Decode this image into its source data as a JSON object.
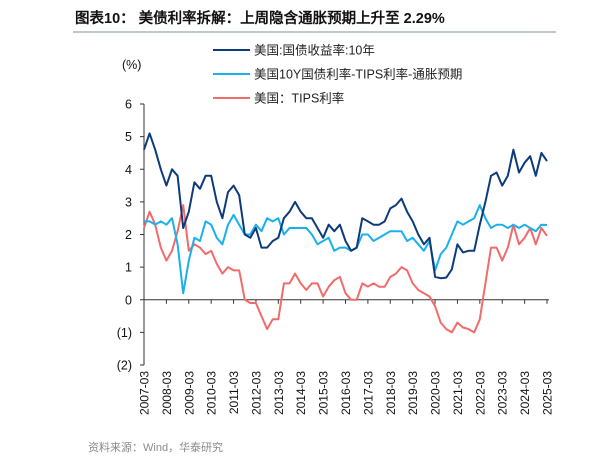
{
  "title": "图表10：  美债利率拆解：上周隐含通胀预期上升至 2.29%",
  "source": "资料来源：Wind，华泰研究",
  "chart_data": {
    "type": "line",
    "ylabel": "(%)",
    "ylim": [
      -2,
      6
    ],
    "yticks": [
      6,
      5,
      4,
      3,
      2,
      1,
      0,
      -1,
      -2
    ],
    "ytick_labels": [
      "6",
      "5",
      "4",
      "3",
      "2",
      "1",
      "0",
      "(1)",
      "(2)"
    ],
    "xtick_labels": [
      "2007-03",
      "2008-03",
      "2009-03",
      "2010-03",
      "2011-03",
      "2012-03",
      "2013-03",
      "2014-03",
      "2015-03",
      "2016-03",
      "2017-03",
      "2018-03",
      "2019-03",
      "2020-03",
      "2021-03",
      "2022-03",
      "2023-03",
      "2024-03",
      "2025-03"
    ],
    "legend_position": "top",
    "grid": false,
    "x": [
      "2007-03",
      "2007-06",
      "2007-09",
      "2007-12",
      "2008-03",
      "2008-06",
      "2008-09",
      "2008-12",
      "2009-03",
      "2009-06",
      "2009-09",
      "2009-12",
      "2010-03",
      "2010-06",
      "2010-09",
      "2010-12",
      "2011-03",
      "2011-06",
      "2011-09",
      "2011-12",
      "2012-03",
      "2012-06",
      "2012-09",
      "2012-12",
      "2013-03",
      "2013-06",
      "2013-09",
      "2013-12",
      "2014-03",
      "2014-06",
      "2014-09",
      "2014-12",
      "2015-03",
      "2015-06",
      "2015-09",
      "2015-12",
      "2016-03",
      "2016-06",
      "2016-09",
      "2016-12",
      "2017-03",
      "2017-06",
      "2017-09",
      "2017-12",
      "2018-03",
      "2018-06",
      "2018-09",
      "2018-12",
      "2019-03",
      "2019-06",
      "2019-09",
      "2019-12",
      "2020-03",
      "2020-06",
      "2020-09",
      "2020-12",
      "2021-03",
      "2021-06",
      "2021-09",
      "2021-12",
      "2022-03",
      "2022-06",
      "2022-09",
      "2022-12",
      "2023-03",
      "2023-06",
      "2023-09",
      "2023-12",
      "2024-03",
      "2024-06",
      "2024-09",
      "2024-12",
      "2025-03"
    ],
    "series": [
      {
        "name": "美国:国债收益率:10年",
        "color": "#0d3a7a",
        "values": [
          4.6,
          5.1,
          4.6,
          4.0,
          3.5,
          4.0,
          3.8,
          2.2,
          2.7,
          3.6,
          3.4,
          3.8,
          3.8,
          3.0,
          2.5,
          3.3,
          3.5,
          3.2,
          2.0,
          1.9,
          2.2,
          1.6,
          1.6,
          1.8,
          1.9,
          2.5,
          2.7,
          3.0,
          2.7,
          2.5,
          2.5,
          2.2,
          1.9,
          2.3,
          2.1,
          2.3,
          1.8,
          1.5,
          1.6,
          2.5,
          2.4,
          2.3,
          2.3,
          2.4,
          2.8,
          2.9,
          3.1,
          2.7,
          2.4,
          2.0,
          1.7,
          1.9,
          0.7,
          0.66,
          0.68,
          0.93,
          1.7,
          1.45,
          1.5,
          1.5,
          2.3,
          3.0,
          3.8,
          3.9,
          3.5,
          3.8,
          4.6,
          3.9,
          4.2,
          4.4,
          3.8,
          4.5,
          4.25
        ]
      },
      {
        "name": "美国10Y国债利率-TIPS利率-通胀预期",
        "color": "#1ab0ec",
        "values": [
          2.4,
          2.4,
          2.3,
          2.4,
          2.3,
          2.5,
          1.7,
          0.2,
          1.2,
          1.9,
          1.8,
          2.4,
          2.3,
          1.9,
          1.7,
          2.3,
          2.6,
          2.3,
          2.0,
          2.0,
          2.3,
          2.1,
          2.5,
          2.4,
          2.5,
          2.0,
          2.2,
          2.2,
          2.2,
          2.2,
          2.0,
          1.7,
          1.8,
          1.9,
          1.5,
          1.6,
          1.6,
          1.5,
          1.6,
          2.0,
          2.0,
          1.8,
          1.9,
          2.0,
          2.1,
          2.1,
          2.1,
          1.8,
          1.9,
          1.7,
          1.5,
          1.8,
          0.9,
          1.4,
          1.6,
          2.0,
          2.4,
          2.3,
          2.4,
          2.5,
          2.9,
          2.5,
          2.2,
          2.3,
          2.3,
          2.2,
          2.3,
          2.2,
          2.3,
          2.2,
          2.1,
          2.3,
          2.29
        ]
      },
      {
        "name": "美国：TIPS利率",
        "color": "#f26b6b",
        "values": [
          2.2,
          2.7,
          2.3,
          1.6,
          1.2,
          1.5,
          2.1,
          2.9,
          1.5,
          1.7,
          1.6,
          1.4,
          1.5,
          1.1,
          0.8,
          1.0,
          0.9,
          0.9,
          0.0,
          -0.1,
          -0.1,
          -0.5,
          -0.9,
          -0.6,
          -0.6,
          0.5,
          0.5,
          0.8,
          0.5,
          0.3,
          0.5,
          0.5,
          0.1,
          0.4,
          0.6,
          0.7,
          0.2,
          0.0,
          0.0,
          0.5,
          0.4,
          0.5,
          0.4,
          0.4,
          0.7,
          0.8,
          1.0,
          0.9,
          0.5,
          0.3,
          0.2,
          0.1,
          -0.2,
          -0.7,
          -0.9,
          -1.0,
          -0.7,
          -0.85,
          -0.9,
          -1.0,
          -0.6,
          0.5,
          1.6,
          1.6,
          1.2,
          1.6,
          2.3,
          1.7,
          1.9,
          2.2,
          1.7,
          2.2,
          1.96
        ]
      }
    ]
  }
}
